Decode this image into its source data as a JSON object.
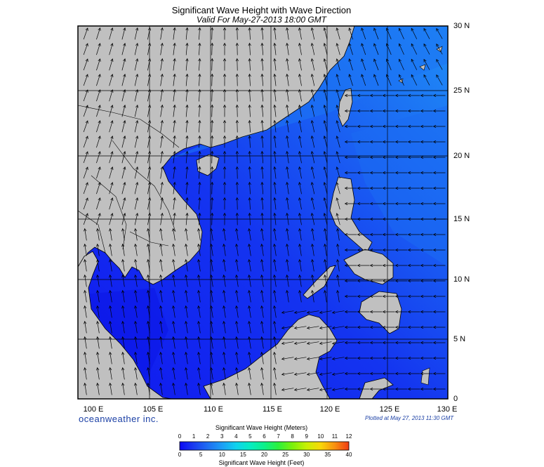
{
  "header": {
    "title": "Significant Wave Height with Wave Direction",
    "subtitle": "Valid For May-27-2013 18:00 GMT"
  },
  "map": {
    "region": "South China Sea",
    "lon_range": [
      100,
      130
    ],
    "lat_range": [
      0,
      30
    ],
    "grid": true,
    "land_color": "#c0c0c0",
    "sea_color_low": "#1424ee",
    "sea_color_high": "#1e8ef5",
    "arrow_color": "#000000"
  },
  "lat_labels": [
    "30 N",
    "25 N",
    "20 N",
    "15 N",
    "10 N",
    "5 N",
    "0"
  ],
  "lon_labels": [
    "100 E",
    "105 E",
    "110 E",
    "115 E",
    "120 E",
    "125 E",
    "130 E"
  ],
  "footer": {
    "brand": "oceanweather inc.",
    "plotted": "Plotted at May 27, 2013 11:30 GMT"
  },
  "colorbar": {
    "title_meters": "Significant Wave Height (Meters)",
    "title_feet": "Significant Wave Height (Feet)",
    "meters_ticks": [
      "0",
      "1",
      "2",
      "3",
      "4",
      "5",
      "6",
      "7",
      "8",
      "9",
      "10",
      "11",
      "12"
    ],
    "feet_ticks": [
      "0",
      "5",
      "10",
      "15",
      "20",
      "25",
      "30",
      "35",
      "40"
    ],
    "colors": [
      "#0b08f3",
      "#1a3cf0",
      "#1e6ef2",
      "#1c9ef6",
      "#0fd2ee",
      "#06ecc2",
      "#0cf08a",
      "#2cf03c",
      "#7cf00a",
      "#c8f004",
      "#f8d808",
      "#f89010",
      "#f03c14"
    ]
  }
}
